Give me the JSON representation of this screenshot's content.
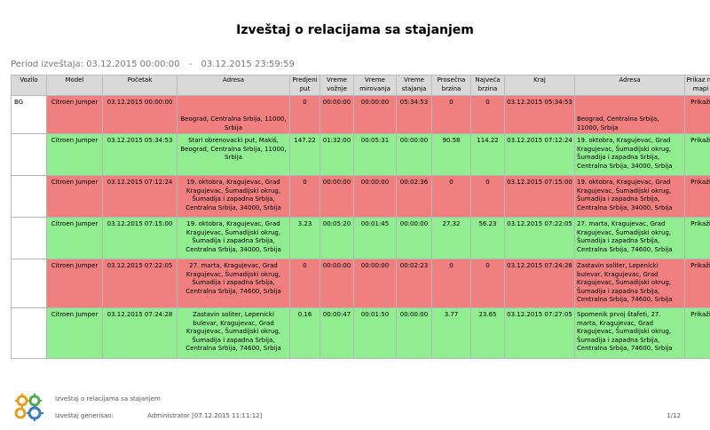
{
  "title": "Izveštaj o relacijama sa stajanjem",
  "period": {
    "label": "Period izveštaja:",
    "from": "03.12.2015 00:00:00",
    "separator": "-",
    "to": "03.12.2015 23:59:59"
  },
  "columns": [
    "Vozilo",
    "Model",
    "Početak",
    "Adresa",
    "Predjeni put",
    "Vreme vožnje",
    "Vreme mirovanja",
    "Vreme stajanja",
    "Prosečna brzina",
    "Najveća brzina",
    "Kraj",
    "Adresa",
    "Prikaz na mapi"
  ],
  "vehicle": "BG",
  "rows": [
    {
      "status": "stop",
      "model": "Citroen Jumper",
      "start": "03.12.2015 00:00:00",
      "address_start": "\n\nBeograd, Centralna Srbija, 11000, Srbija",
      "distance": "0",
      "drive_time": "00:00:00",
      "idle_time": "00:00:00",
      "stop_time": "05:34:53",
      "avg_speed": "0",
      "max_speed": "0",
      "end": "03.12.2015 05:34:53",
      "address_end": "\n\nBeograd, Centralna Srbija, 11000, Srbija",
      "map": "Prikaži"
    },
    {
      "status": "drive",
      "model": "Citroen Jumper",
      "start": "03.12.2015 05:34:53",
      "address_start": "Stari obrenovacki put, Makiš, Beograd, Centralna Srbija, 11000, Srbija",
      "distance": "147.22",
      "drive_time": "01:32:00",
      "idle_time": "00:05:31",
      "stop_time": "00:00:00",
      "avg_speed": "90.58",
      "max_speed": "114.22",
      "end": "03.12.2015 07:12:24",
      "address_end": "19. oktobra, Kragujevac, Grad Kragujevac, Šumadijski okrug, Šumadija i zapadna Srbija, Centralna Srbija, 34000, Srbija",
      "map": "Prikaži"
    },
    {
      "status": "stop",
      "model": "Citroen Jumper",
      "start": "03.12.2015 07:12:24",
      "address_start": "19. oktobra, Kragujevac, Grad Kragujevac, Šumadijski okrug, Šumadija i zapadna Srbija, Centralna Srbija, 34000, Srbija",
      "distance": "0",
      "drive_time": "00:00:00",
      "idle_time": "00:00:00",
      "stop_time": "00:02:36",
      "avg_speed": "0",
      "max_speed": "0",
      "end": "03.12.2015 07:15:00",
      "address_end": "19. oktobra, Kragujevac, Grad Kragujevac, Šumadijski okrug, Šumadija i zapadna Srbija, Centralna Srbija, 34000, Srbija",
      "map": "Prikaži"
    },
    {
      "status": "drive",
      "model": "Citroen Jumper",
      "start": "03.12.2015 07:15:00",
      "address_start": "19. oktobra, Kragujevac, Grad Kragujevac, Šumadijski okrug, Šumadija i zapadna Srbija, Centralna Srbija, 34000, Srbija",
      "distance": "3.23",
      "drive_time": "00:05:20",
      "idle_time": "00:01:45",
      "stop_time": "00:00:00",
      "avg_speed": "27.32",
      "max_speed": "56.23",
      "end": "03.12.2015 07:22:05",
      "address_end": "27. marta, Kragujevac, Grad Kragujevac, Šumadijski okrug, Šumadija i zapadna Srbija, Centralna Srbija, 74600, Srbija",
      "map": "Prikaži"
    },
    {
      "status": "stop",
      "model": "Citroen Jumper",
      "start": "03.12.2015 07:22:05",
      "address_start": "27. marta, Kragujevac, Grad Kragujevac, Šumadijski okrug, Šumadija i zapadna Srbija, Centralna Srbija, 74600, Srbija",
      "distance": "0",
      "drive_time": "00:00:00",
      "idle_time": "00:00:00",
      "stop_time": "00:02:23",
      "avg_speed": "0",
      "max_speed": "0",
      "end": "03.12.2015 07:24:28",
      "address_end": "Zastavin soliter, Lepenicki bulevar, Kragujevac, Grad Kragujevac, Šumadijski okrug, Šumadija i zapadna Srbija, Centralna Srbija, 74600, Srbija",
      "map": "Prikaži"
    },
    {
      "status": "drive",
      "model": "Citroen Jumper",
      "start": "03.12.2015 07:24:28",
      "address_start": "Zastavin soliter, Lepenicki bulevar, Kragujevac, Grad Kragujevac, Šumadijski okrug, Šumadija i zapadna Srbija, Centralna Srbija, 74600, Srbija",
      "distance": "0.16",
      "drive_time": "00:00:47",
      "idle_time": "00:01:50",
      "stop_time": "00:00:00",
      "avg_speed": "3.77",
      "max_speed": "23.65",
      "end": "03.12.2015 07:27:05",
      "address_end": "Spomenik prvoj štafeti, 27. marta, Kragujevac, Grad Kragujevac, Šumadijski okrug, Šumadija i zapadna Srbija, Centralna Srbija, 74600, Srbija",
      "map": "Prikaži"
    }
  ],
  "footer": {
    "report_name": "Izveštaj o relacijama sa stajanjem",
    "generated_label": "Izveštaj generisao:",
    "user": "Administrator",
    "generated_at": "[07.12.2015 11:11:12]",
    "page": "1/12"
  },
  "colors": {
    "stop": "#f08080",
    "drive": "#90ee90",
    "header": "#d9d9d9"
  },
  "icons": {
    "logo": "gears-logo-icon"
  }
}
